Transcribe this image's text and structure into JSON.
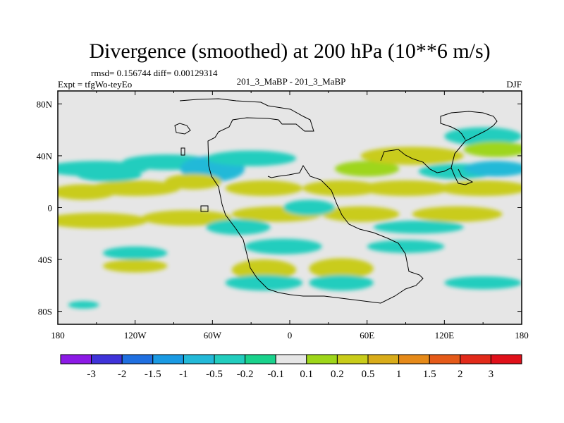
{
  "chart_data": {
    "type": "heatmap",
    "title": "Divergence (smoothed) at 200 hPa (10**6 m/s)",
    "stats": "rmsd= 0.156744  diff= 0.00129314",
    "expt": "Expt = tfgWo-teyEo",
    "case": "201_3_MaBP - 201_3_MaBP",
    "season": "DJF",
    "x_ticks": [
      "180",
      "120W",
      "60W",
      "0",
      "60E",
      "120E",
      "180"
    ],
    "x_range": [
      -180,
      180
    ],
    "y_ticks": [
      {
        "label": "80N",
        "lat": 80
      },
      {
        "label": "40N",
        "lat": 40
      },
      {
        "label": "0",
        "lat": 0
      },
      {
        "label": "40S",
        "lat": -40
      },
      {
        "label": "80S",
        "lat": -80
      }
    ],
    "y_range": [
      -90,
      90
    ],
    "colorbar_levels": [
      "-3",
      "-2",
      "-1.5",
      "-1",
      "-0.5",
      "-0.2",
      "-0.1",
      "0.1",
      "0.2",
      "0.5",
      "1",
      "1.5",
      "2",
      "3"
    ],
    "colorbar_colors": [
      "#8c1ae6",
      "#3f33d9",
      "#1f6fe0",
      "#1a9ae3",
      "#23b9d8",
      "#22cdbe",
      "#19d28c",
      "#e6e6e6",
      "#9ed61a",
      "#c9cc1a",
      "#d9ac1a",
      "#e68a19",
      "#e55a19",
      "#e22a1a",
      "#e0101a"
    ],
    "blobs": [
      {
        "lon": -150,
        "lat": 30,
        "w": 40,
        "h": 6,
        "v": -0.3
      },
      {
        "lon": -95,
        "lat": 35,
        "w": 35,
        "h": 6,
        "v": -0.4
      },
      {
        "lon": -60,
        "lat": 30,
        "w": 25,
        "h": 10,
        "v": -0.6
      },
      {
        "lon": -30,
        "lat": 38,
        "w": 35,
        "h": 6,
        "v": -0.3
      },
      {
        "lon": 60,
        "lat": 30,
        "w": 25,
        "h": 6,
        "v": 0.2
      },
      {
        "lon": 95,
        "lat": 40,
        "w": 40,
        "h": 7,
        "v": 0.25
      },
      {
        "lon": 150,
        "lat": 55,
        "w": 30,
        "h": 7,
        "v": -0.3
      },
      {
        "lon": 160,
        "lat": 45,
        "w": 25,
        "h": 6,
        "v": 0.2
      },
      {
        "lon": 130,
        "lat": 28,
        "w": 30,
        "h": 6,
        "v": -0.4
      },
      {
        "lon": 160,
        "lat": 30,
        "w": 25,
        "h": 6,
        "v": -0.5
      },
      {
        "lon": -160,
        "lat": 12,
        "w": 25,
        "h": 6,
        "v": 0.4
      },
      {
        "lon": -120,
        "lat": 15,
        "w": 35,
        "h": 6,
        "v": 0.3
      },
      {
        "lon": -75,
        "lat": 20,
        "w": 22,
        "h": 6,
        "v": 0.3
      },
      {
        "lon": -20,
        "lat": 15,
        "w": 30,
        "h": 6,
        "v": 0.3
      },
      {
        "lon": 40,
        "lat": 15,
        "w": 30,
        "h": 6,
        "v": 0.3
      },
      {
        "lon": 90,
        "lat": 15,
        "w": 35,
        "h": 6,
        "v": 0.3
      },
      {
        "lon": 150,
        "lat": 15,
        "w": 35,
        "h": 6,
        "v": 0.25
      },
      {
        "lon": -150,
        "lat": -10,
        "w": 40,
        "h": 6,
        "v": 0.3
      },
      {
        "lon": -80,
        "lat": -8,
        "w": 35,
        "h": 6,
        "v": 0.4
      },
      {
        "lon": -10,
        "lat": -5,
        "w": 35,
        "h": 6,
        "v": 0.3
      },
      {
        "lon": 55,
        "lat": -5,
        "w": 30,
        "h": 6,
        "v": 0.35
      },
      {
        "lon": 130,
        "lat": -5,
        "w": 35,
        "h": 6,
        "v": 0.3
      },
      {
        "lon": -20,
        "lat": -48,
        "w": 25,
        "h": 8,
        "v": 0.5
      },
      {
        "lon": 40,
        "lat": -47,
        "w": 25,
        "h": 8,
        "v": 0.45
      },
      {
        "lon": -120,
        "lat": -45,
        "w": 25,
        "h": 5,
        "v": 0.3
      },
      {
        "lon": -140,
        "lat": 25,
        "w": 25,
        "h": 5,
        "v": -0.3
      },
      {
        "lon": -40,
        "lat": -15,
        "w": 25,
        "h": 6,
        "v": -0.4
      },
      {
        "lon": 15,
        "lat": 0,
        "w": 20,
        "h": 6,
        "v": -0.4
      },
      {
        "lon": 100,
        "lat": -15,
        "w": 35,
        "h": 5,
        "v": -0.3
      },
      {
        "lon": -5,
        "lat": -30,
        "w": 30,
        "h": 6,
        "v": -0.4
      },
      {
        "lon": -20,
        "lat": -58,
        "w": 30,
        "h": 6,
        "v": -0.3
      },
      {
        "lon": 40,
        "lat": -58,
        "w": 25,
        "h": 6,
        "v": -0.3
      },
      {
        "lon": 150,
        "lat": -58,
        "w": 30,
        "h": 5,
        "v": -0.3
      },
      {
        "lon": -120,
        "lat": -35,
        "w": 25,
        "h": 5,
        "v": -0.3
      },
      {
        "lon": 90,
        "lat": -30,
        "w": 30,
        "h": 5,
        "v": -0.3
      },
      {
        "lon": -160,
        "lat": -75,
        "w": 12,
        "h": 3,
        "v": -0.3
      }
    ]
  }
}
